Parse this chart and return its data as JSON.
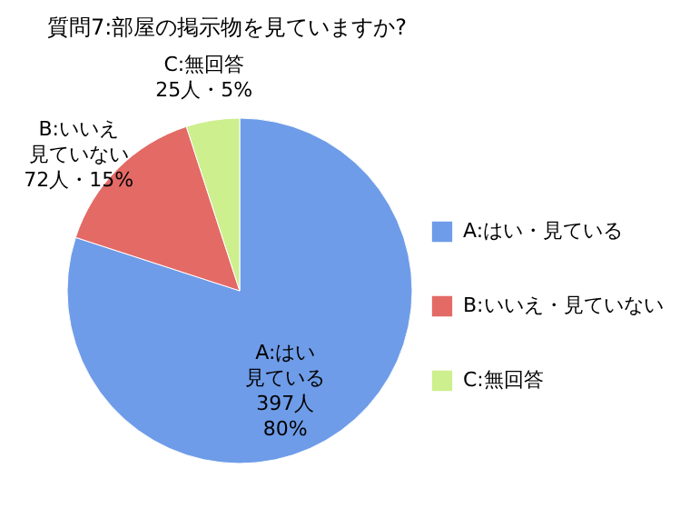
{
  "chart_data": {
    "type": "pie",
    "title": "質問7:部屋の掲示物を見ていますか?",
    "categories": [
      "A:はい・見ている",
      "B:いいえ・見ていない",
      "C:無回答"
    ],
    "values": [
      80,
      15,
      5
    ],
    "colors": [
      "#6e9ce8",
      "#e46a66",
      "#cdef8e"
    ],
    "value_labels": [
      [
        "A:はい",
        "見ている",
        "397人",
        "80%"
      ],
      [
        "B:いいえ",
        "見ていない",
        "72人・15%"
      ],
      [
        "C:無回答",
        "25人・5%"
      ]
    ],
    "legend": "right"
  }
}
